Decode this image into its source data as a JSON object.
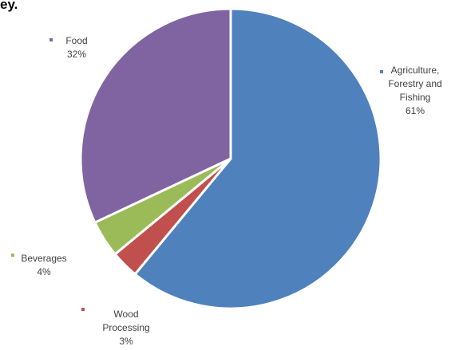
{
  "page": {
    "corner_text": "ey."
  },
  "chart_data": {
    "type": "pie",
    "title": "",
    "slices": [
      {
        "label": "Agriculture, Forestry and Fishing",
        "label_lines": [
          "Agriculture,",
          "Forestry and",
          "Fishing"
        ],
        "percent_text": "61%",
        "value": 61,
        "color": "#4F81BD"
      },
      {
        "label": "Wood Processing",
        "label_lines": [
          "Wood",
          "Processing"
        ],
        "percent_text": "3%",
        "value": 3,
        "color": "#C0504D"
      },
      {
        "label": "Beverages",
        "label_lines": [
          "Beverages"
        ],
        "percent_text": "4%",
        "value": 4,
        "color": "#9BBB59"
      },
      {
        "label": "Food",
        "label_lines": [
          "Food"
        ],
        "percent_text": "32%",
        "value": 32,
        "color": "#8064A2"
      }
    ],
    "start_angle": "12 o'clock",
    "direction": "clockwise",
    "legend": "none (category labels placed beside slices)"
  }
}
